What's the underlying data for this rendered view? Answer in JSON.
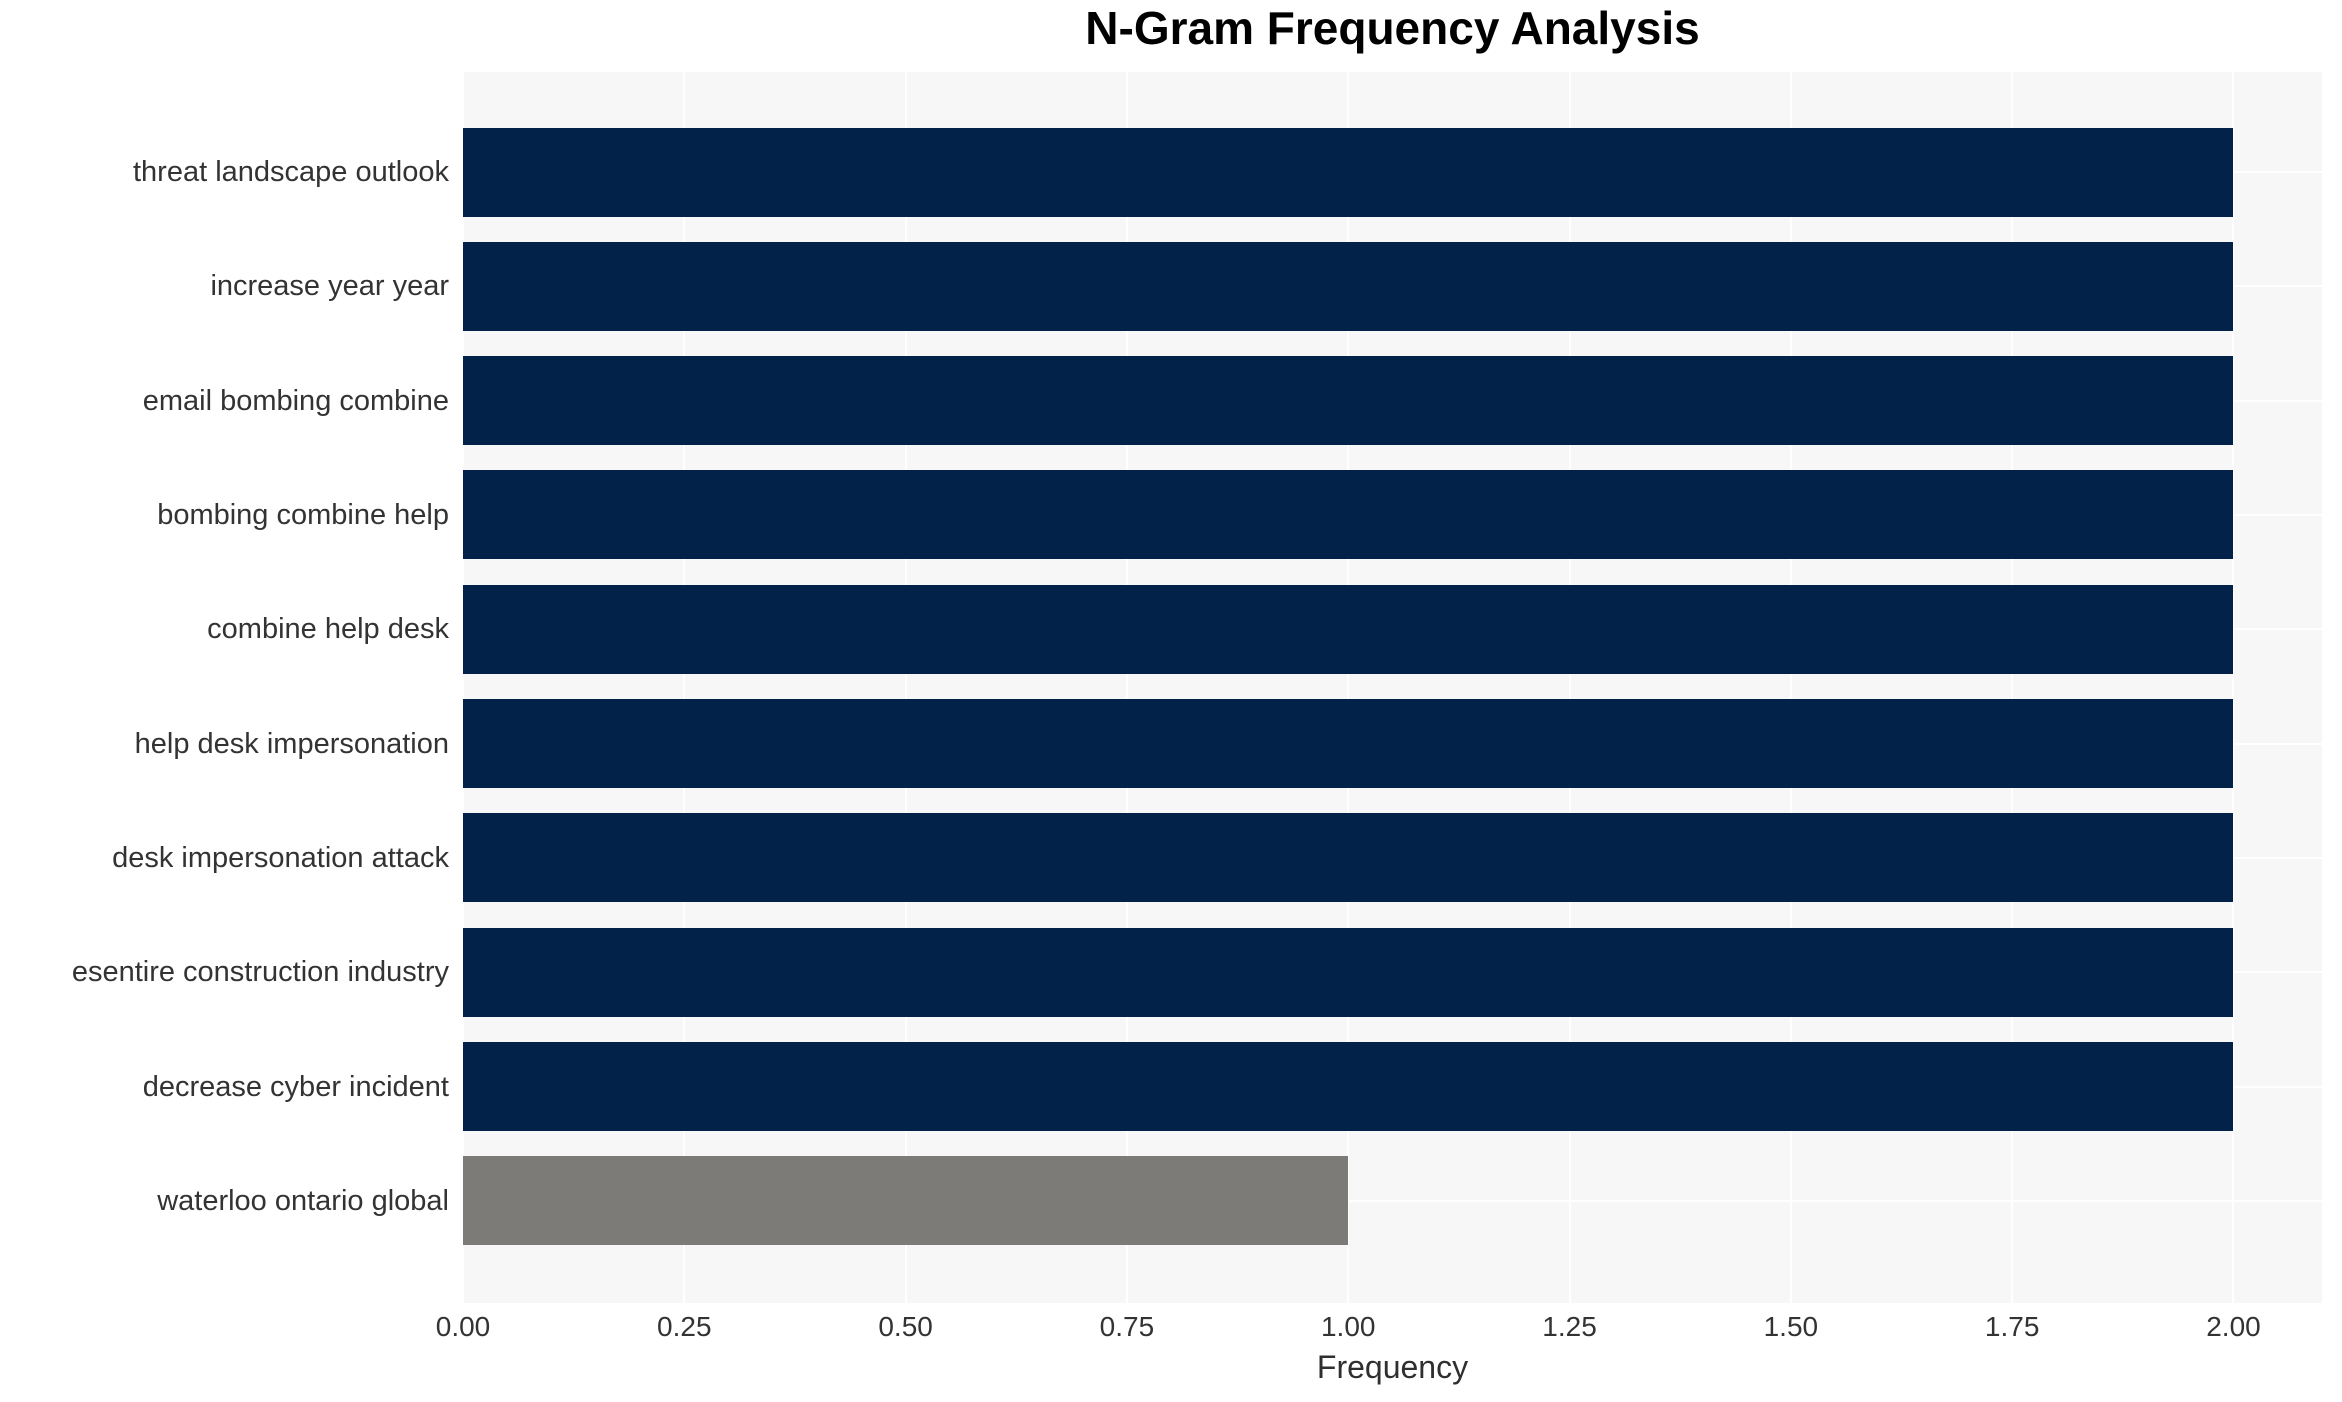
{
  "chart_data": {
    "type": "bar",
    "orientation": "horizontal",
    "title": "N-Gram Frequency Analysis",
    "xlabel": "Frequency",
    "ylabel": "",
    "categories": [
      "threat landscape outlook",
      "increase year year",
      "email bombing combine",
      "bombing combine help",
      "combine help desk",
      "help desk impersonation",
      "desk impersonation attack",
      "esentire construction industry",
      "decrease cyber incident",
      "waterloo ontario global"
    ],
    "values": [
      2,
      2,
      2,
      2,
      2,
      2,
      2,
      2,
      2,
      1
    ],
    "bar_colors": [
      "#032249",
      "#032249",
      "#032249",
      "#032249",
      "#032249",
      "#032249",
      "#032249",
      "#032249",
      "#032249",
      "#7c7b78"
    ],
    "xlim": [
      0,
      2.1
    ],
    "xticks": [
      0,
      0.25,
      0.5,
      0.75,
      1,
      1.25,
      1.5,
      1.75,
      2
    ],
    "xtick_labels": [
      "0.00",
      "0.25",
      "0.50",
      "0.75",
      "1.00",
      "1.25",
      "1.50",
      "1.75",
      "2.00"
    ],
    "grid": true,
    "grid_color": "#ffffff",
    "plot_bg": "#f7f7f7",
    "legend": "none"
  }
}
